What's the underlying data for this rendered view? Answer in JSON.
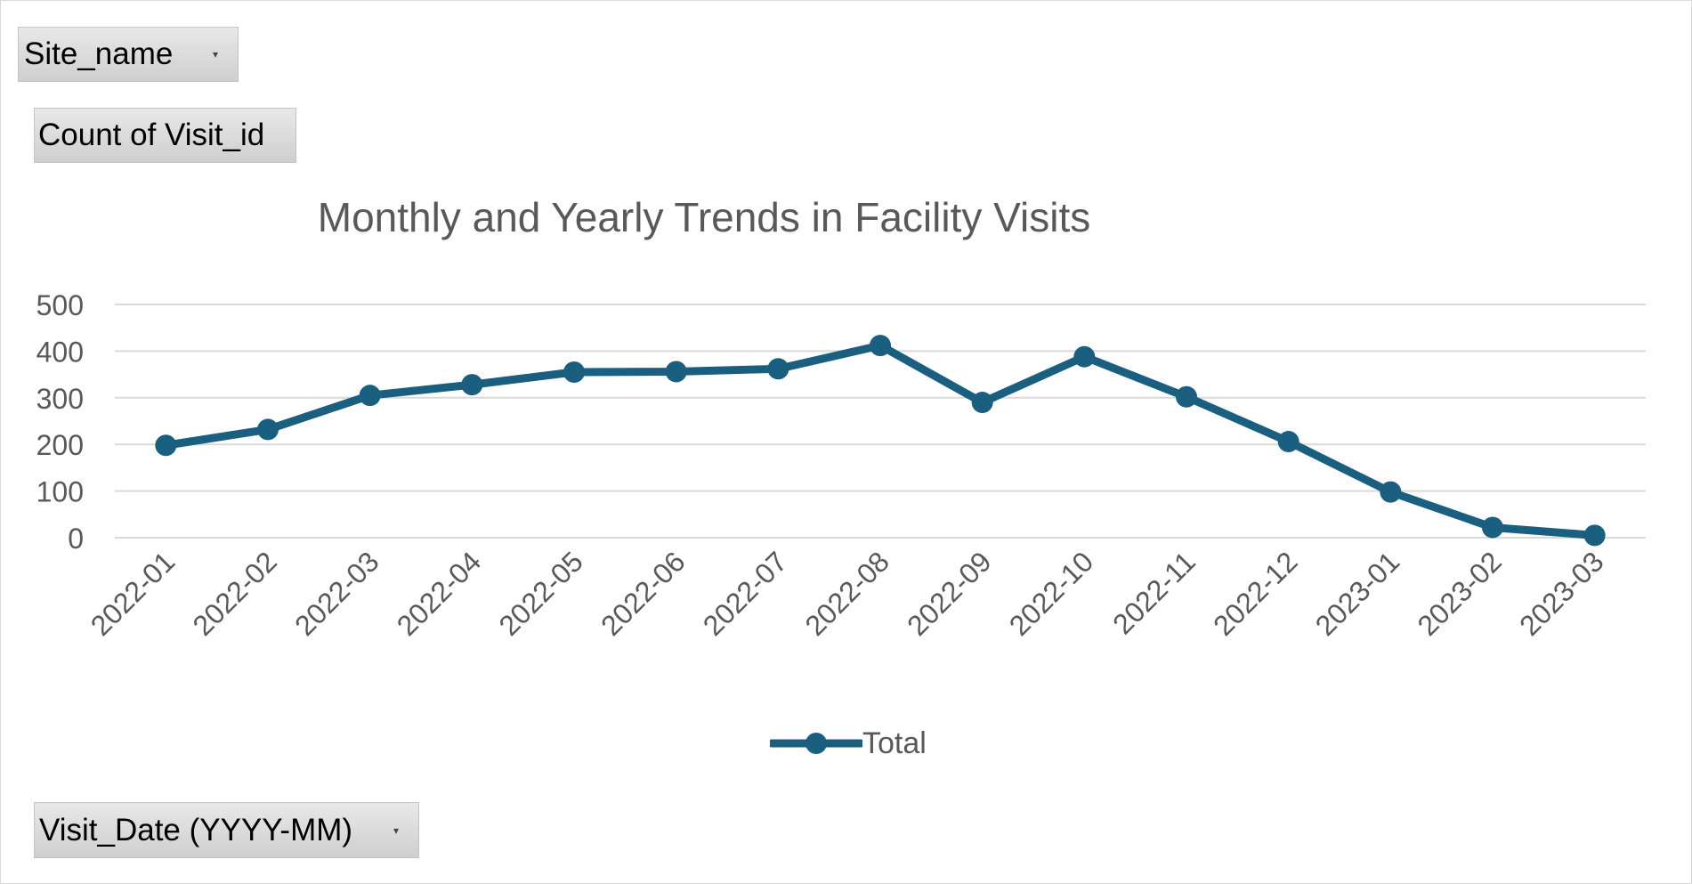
{
  "pivot": {
    "filter_field": "Site_name",
    "value_field": "Count of Visit_id",
    "axis_field": "Visit_Date (YYYY-MM)"
  },
  "colors": {
    "series": "#1a5e80",
    "grid": "#d9d9d9",
    "text": "#595959"
  },
  "chart_data": {
    "type": "line",
    "title": "Monthly and Yearly Trends in Facility Visits",
    "xlabel": "",
    "ylabel": "",
    "categories": [
      "2022-01",
      "2022-02",
      "2022-03",
      "2022-04",
      "2022-05",
      "2022-06",
      "2022-07",
      "2022-08",
      "2022-09",
      "2022-10",
      "2022-11",
      "2022-12",
      "2023-01",
      "2023-02",
      "2023-03"
    ],
    "series": [
      {
        "name": "Total",
        "values": [
          198,
          232,
          305,
          328,
          355,
          356,
          362,
          412,
          290,
          388,
          302,
          206,
          98,
          22,
          5
        ]
      }
    ],
    "ylim": [
      0,
      500
    ],
    "yticks": [
      0,
      100,
      200,
      300,
      400,
      500
    ],
    "grid": true,
    "legend": "bottom",
    "marker": "circle"
  }
}
